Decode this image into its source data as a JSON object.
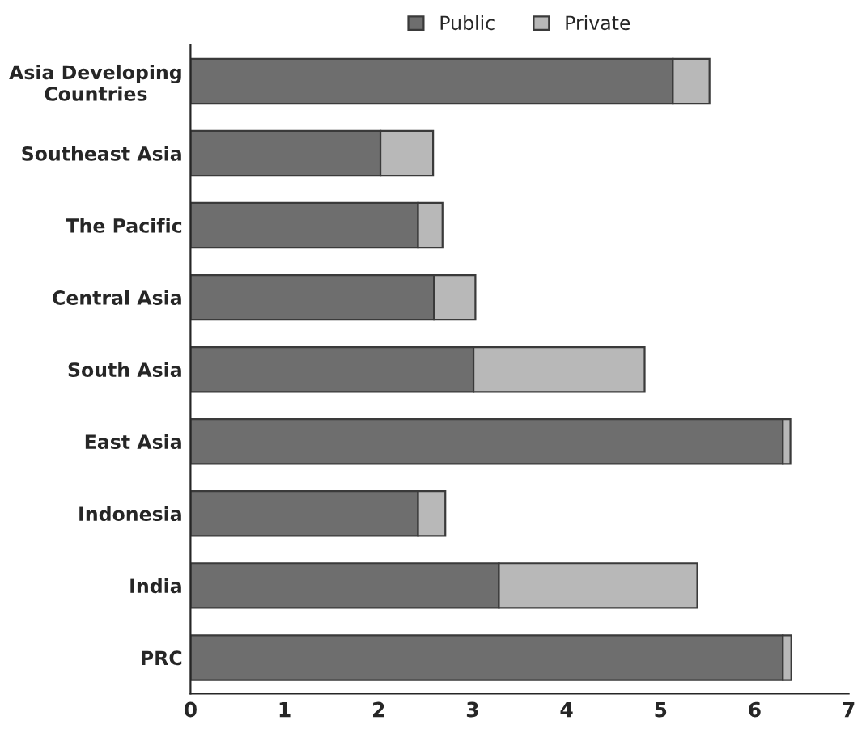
{
  "chart_data": {
    "type": "bar",
    "orientation": "horizontal",
    "stacked": true,
    "categories": [
      "Asia Developing Countries",
      "Southeast Asia",
      "The Pacific",
      "Central Asia",
      "South Asia",
      "East Asia",
      "Indonesia",
      "India",
      "PRC"
    ],
    "series": [
      {
        "name": "Public",
        "color": "#6e6e6e",
        "values": [
          5.13,
          2.02,
          2.42,
          2.59,
          3.01,
          6.3,
          2.42,
          3.28,
          6.3
        ]
      },
      {
        "name": "Private",
        "color": "#b8b8b8",
        "values": [
          0.39,
          0.56,
          0.26,
          0.44,
          1.82,
          0.08,
          0.29,
          2.11,
          0.09
        ]
      }
    ],
    "xlim": [
      0,
      7
    ],
    "xticks": [
      0,
      1,
      2,
      3,
      4,
      5,
      6,
      7
    ],
    "grid": false,
    "legend": "top"
  }
}
